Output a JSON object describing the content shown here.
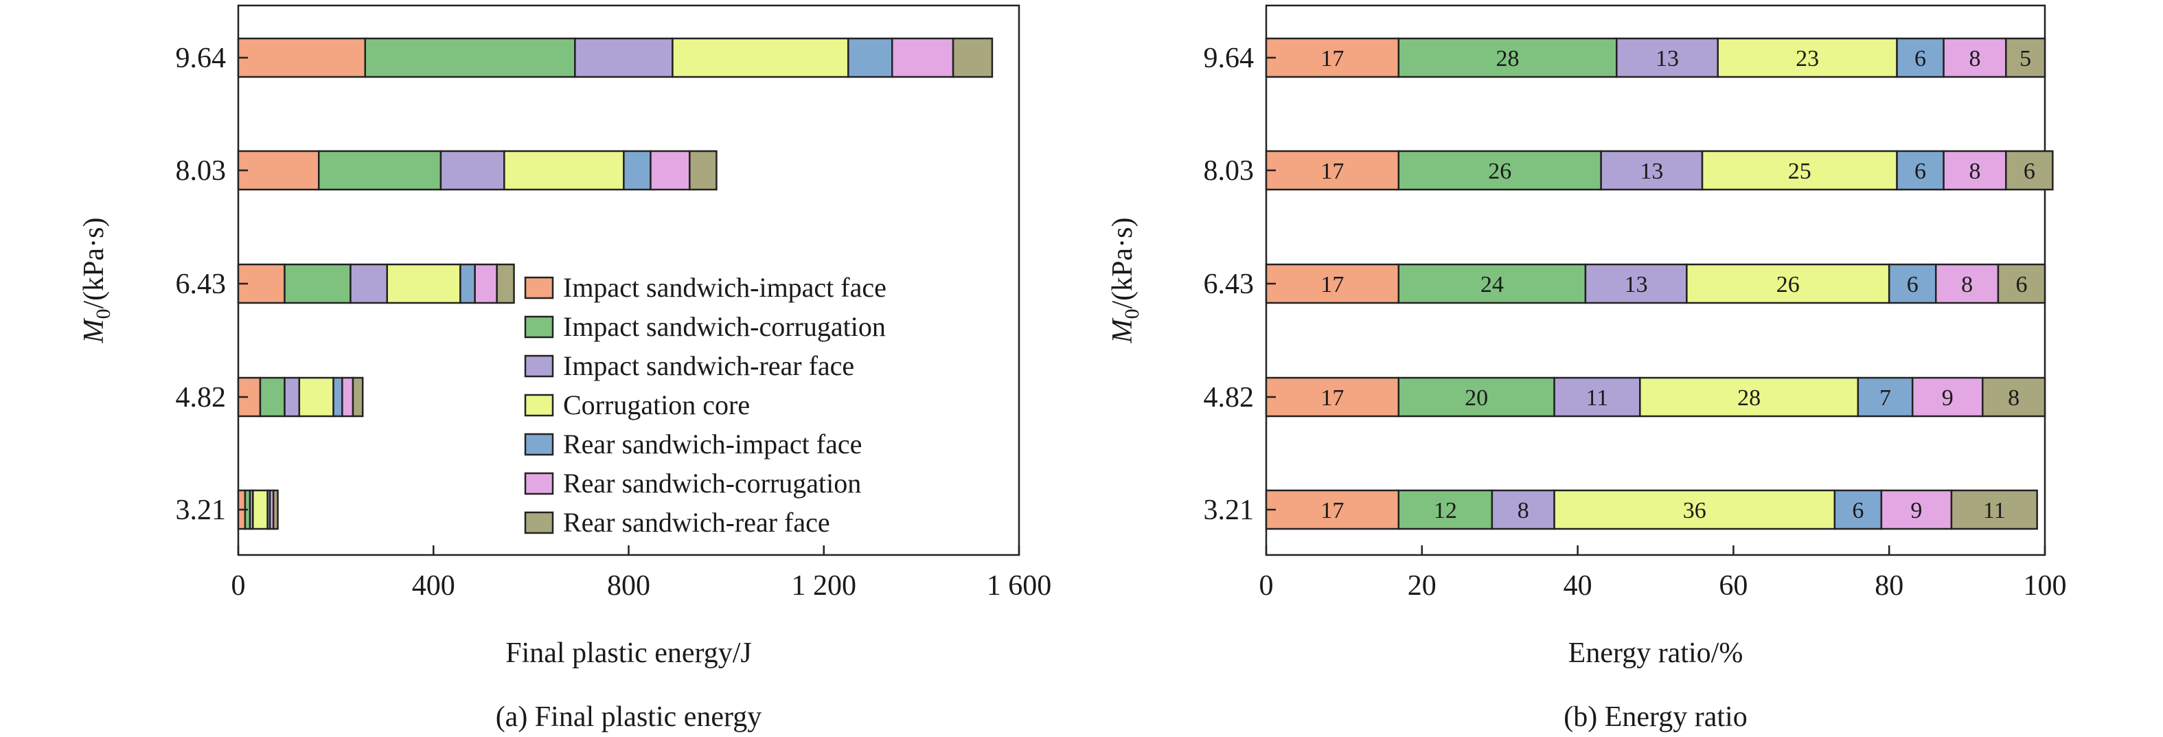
{
  "chart_data": [
    {
      "type": "bar",
      "orientation": "horizontal",
      "stacked": true,
      "caption": "(a) Final plastic energy",
      "xlabel": "Final plastic energy/J",
      "ylabel": {
        "symbol": "M",
        "subscript": "0",
        "unit": "/(kPa·s)"
      },
      "categories": [
        "9.64",
        "8.03",
        "6.43",
        "4.82",
        "3.21"
      ],
      "xlim": [
        0,
        1600
      ],
      "xticks": [
        0,
        400,
        800,
        1200,
        1600
      ],
      "xtick_labels": [
        "0",
        "400",
        "800",
        "1 200",
        "1 600"
      ],
      "grid": false,
      "legend": "center-right",
      "series": [
        {
          "name": "Impact sandwich-impact face",
          "color": "#F4A582",
          "values": [
            260,
            165,
            95,
            45,
            14
          ]
        },
        {
          "name": "Impact sandwich-corrugation",
          "color": "#7FC27F",
          "values": [
            430,
            250,
            135,
            50,
            10
          ]
        },
        {
          "name": "Impact sandwich-rear face",
          "color": "#AFA3D6",
          "values": [
            200,
            130,
            75,
            30,
            6
          ]
        },
        {
          "name": "Corrugation core",
          "color": "#EAF78C",
          "values": [
            360,
            245,
            150,
            70,
            30
          ]
        },
        {
          "name": "Rear sandwich-impact face",
          "color": "#7FA8D0",
          "values": [
            90,
            55,
            30,
            18,
            5
          ]
        },
        {
          "name": "Rear sandwich-corrugation",
          "color": "#E3A8E3",
          "values": [
            125,
            80,
            45,
            22,
            7
          ]
        },
        {
          "name": "Rear sandwich-rear face",
          "color": "#A8A77E",
          "values": [
            80,
            55,
            35,
            20,
            9
          ]
        }
      ]
    },
    {
      "type": "bar",
      "orientation": "horizontal",
      "stacked": true,
      "caption": "(b) Energy ratio",
      "xlabel": "Energy ratio/%",
      "ylabel": {
        "symbol": "M",
        "subscript": "0",
        "unit": "/(kPa·s)"
      },
      "categories": [
        "9.64",
        "8.03",
        "6.43",
        "4.82",
        "3.21"
      ],
      "xlim": [
        0,
        100
      ],
      "xticks": [
        0,
        20,
        40,
        60,
        80,
        100
      ],
      "xtick_labels": [
        "0",
        "20",
        "40",
        "60",
        "80",
        "100"
      ],
      "grid": false,
      "data_labels": true,
      "series": [
        {
          "name": "Impact sandwich-impact face",
          "color": "#F4A582",
          "values": [
            17,
            17,
            17,
            17,
            17
          ]
        },
        {
          "name": "Impact sandwich-corrugation",
          "color": "#7FC27F",
          "values": [
            28,
            26,
            24,
            20,
            12
          ]
        },
        {
          "name": "Impact sandwich-rear face",
          "color": "#AFA3D6",
          "values": [
            13,
            13,
            13,
            11,
            8
          ]
        },
        {
          "name": "Corrugation core",
          "color": "#EAF78C",
          "values": [
            23,
            25,
            26,
            28,
            36
          ]
        },
        {
          "name": "Rear sandwich-impact face",
          "color": "#7FA8D0",
          "values": [
            6,
            6,
            6,
            7,
            6
          ]
        },
        {
          "name": "Rear sandwich-corrugation",
          "color": "#E3A8E3",
          "values": [
            8,
            8,
            8,
            9,
            9
          ]
        },
        {
          "name": "Rear sandwich-rear face",
          "color": "#A8A77E",
          "values": [
            5,
            6,
            6,
            8,
            11
          ]
        }
      ]
    }
  ]
}
